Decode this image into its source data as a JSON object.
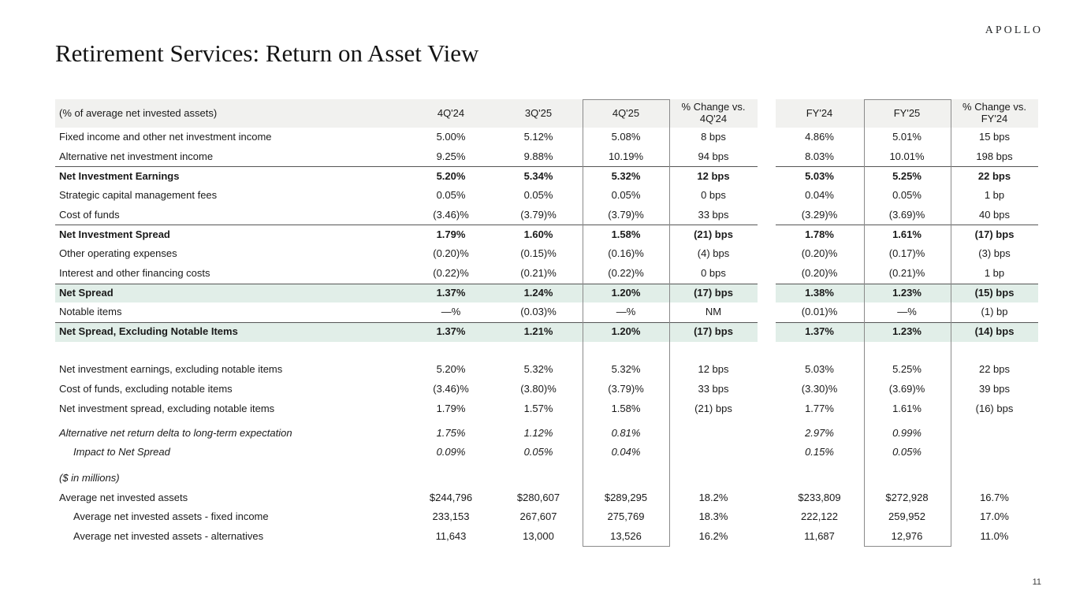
{
  "logo": "APOLLO",
  "title": "Retirement Services: Return on Asset View",
  "page_number": "11",
  "colors": {
    "header_bg": "#f1f1ef",
    "highlight_green_bg": "#e1eee8",
    "rule_line": "#555555",
    "column_box_border": "#8a8a8a"
  },
  "table": {
    "header": {
      "label": "(% of average net invested assets)",
      "columns": [
        "4Q'24",
        "3Q'25",
        "4Q'25",
        "% Change vs.\n4Q'24",
        "FY'24",
        "FY'25",
        "% Change vs.\nFY'24"
      ]
    },
    "column_keys": [
      "4q24",
      "3q25",
      "4q25",
      "chg-vs-4q24",
      "fy24",
      "fy25",
      "chg-vs-fy24"
    ],
    "rows": [
      {
        "label": "Fixed income and other net investment income",
        "values": [
          "5.00%",
          "5.12%",
          "5.08%",
          "8 bps",
          "4.86%",
          "5.01%",
          "15 bps"
        ],
        "style": []
      },
      {
        "label": "Alternative net investment income",
        "values": [
          "9.25%",
          "9.88%",
          "10.19%",
          "94 bps",
          "8.03%",
          "10.01%",
          "198 bps"
        ],
        "style": []
      },
      {
        "label": "Net Investment Earnings",
        "values": [
          "5.20%",
          "5.34%",
          "5.32%",
          "12 bps",
          "5.03%",
          "5.25%",
          "22 bps"
        ],
        "style": [
          "bold",
          "rule"
        ]
      },
      {
        "label": "Strategic capital management fees",
        "values": [
          "0.05%",
          "0.05%",
          "0.05%",
          "0 bps",
          "0.04%",
          "0.05%",
          "1 bp"
        ],
        "style": []
      },
      {
        "label": "Cost of funds",
        "values": [
          "(3.46)%",
          "(3.79)%",
          "(3.79)%",
          "33 bps",
          "(3.29)%",
          "(3.69)%",
          "40 bps"
        ],
        "style": []
      },
      {
        "label": "Net Investment Spread",
        "values": [
          "1.79%",
          "1.60%",
          "1.58%",
          "(21) bps",
          "1.78%",
          "1.61%",
          "(17) bps"
        ],
        "style": [
          "bold",
          "rule"
        ]
      },
      {
        "label": "Other operating expenses",
        "values": [
          "(0.20)%",
          "(0.15)%",
          "(0.16)%",
          "(4) bps",
          "(0.20)%",
          "(0.17)%",
          "(3) bps"
        ],
        "style": []
      },
      {
        "label": "Interest and other financing costs",
        "values": [
          "(0.22)%",
          "(0.21)%",
          "(0.22)%",
          "0 bps",
          "(0.20)%",
          "(0.21)%",
          "1 bp"
        ],
        "style": []
      },
      {
        "label": "Net Spread",
        "values": [
          "1.37%",
          "1.24%",
          "1.20%",
          "(17) bps",
          "1.38%",
          "1.23%",
          "(15) bps"
        ],
        "style": [
          "bold",
          "green",
          "rule"
        ]
      },
      {
        "label": "Notable items",
        "values": [
          "—%",
          "(0.03)%",
          "—%",
          "NM",
          "(0.01)%",
          "—%",
          "(1) bp"
        ],
        "style": []
      },
      {
        "label": "Net Spread, Excluding Notable Items",
        "values": [
          "1.37%",
          "1.21%",
          "1.20%",
          "(17) bps",
          "1.37%",
          "1.23%",
          "(14) bps"
        ],
        "style": [
          "bold",
          "green",
          "rule"
        ]
      },
      {
        "label": "Net investment earnings, excluding notable items",
        "values": [
          "5.20%",
          "5.32%",
          "5.32%",
          "12 bps",
          "5.03%",
          "5.25%",
          "22 bps"
        ],
        "style": [],
        "spacer_before": 24
      },
      {
        "label": "Cost of funds, excluding notable items",
        "values": [
          "(3.46)%",
          "(3.80)%",
          "(3.79)%",
          "33 bps",
          "(3.30)%",
          "(3.69)%",
          "39 bps"
        ],
        "style": []
      },
      {
        "label": "Net investment spread, excluding notable items",
        "values": [
          "1.79%",
          "1.57%",
          "1.58%",
          "(21) bps",
          "1.77%",
          "1.61%",
          "(16) bps"
        ],
        "style": []
      },
      {
        "label": "Alternative net return delta to long-term expectation",
        "values": [
          "1.75%",
          "1.12%",
          "0.81%",
          "",
          "2.97%",
          "0.99%",
          ""
        ],
        "style": [
          "italic"
        ],
        "spacer_before": 6
      },
      {
        "label": "Impact to Net Spread",
        "values": [
          "0.09%",
          "0.05%",
          "0.04%",
          "",
          "0.15%",
          "0.05%",
          ""
        ],
        "style": [
          "italic",
          "indent"
        ]
      },
      {
        "label": "($ in millions)",
        "values": [
          "",
          "",
          "",
          "",
          "",
          "",
          ""
        ],
        "style": [
          "italic"
        ],
        "spacer_before": 8
      },
      {
        "label": "Average net invested assets",
        "values": [
          "$244,796",
          "$280,607",
          "$289,295",
          "18.2%",
          "$233,809",
          "$272,928",
          "16.7%"
        ],
        "style": []
      },
      {
        "label": "Average net invested assets - fixed income",
        "values": [
          "233,153",
          "267,607",
          "275,769",
          "18.3%",
          "222,122",
          "259,952",
          "17.0%"
        ],
        "style": [
          "indent"
        ]
      },
      {
        "label": "Average net invested assets - alternatives",
        "values": [
          "11,643",
          "13,000",
          "13,526",
          "16.2%",
          "11,687",
          "12,976",
          "11.0%"
        ],
        "style": [
          "indent"
        ]
      }
    ]
  }
}
